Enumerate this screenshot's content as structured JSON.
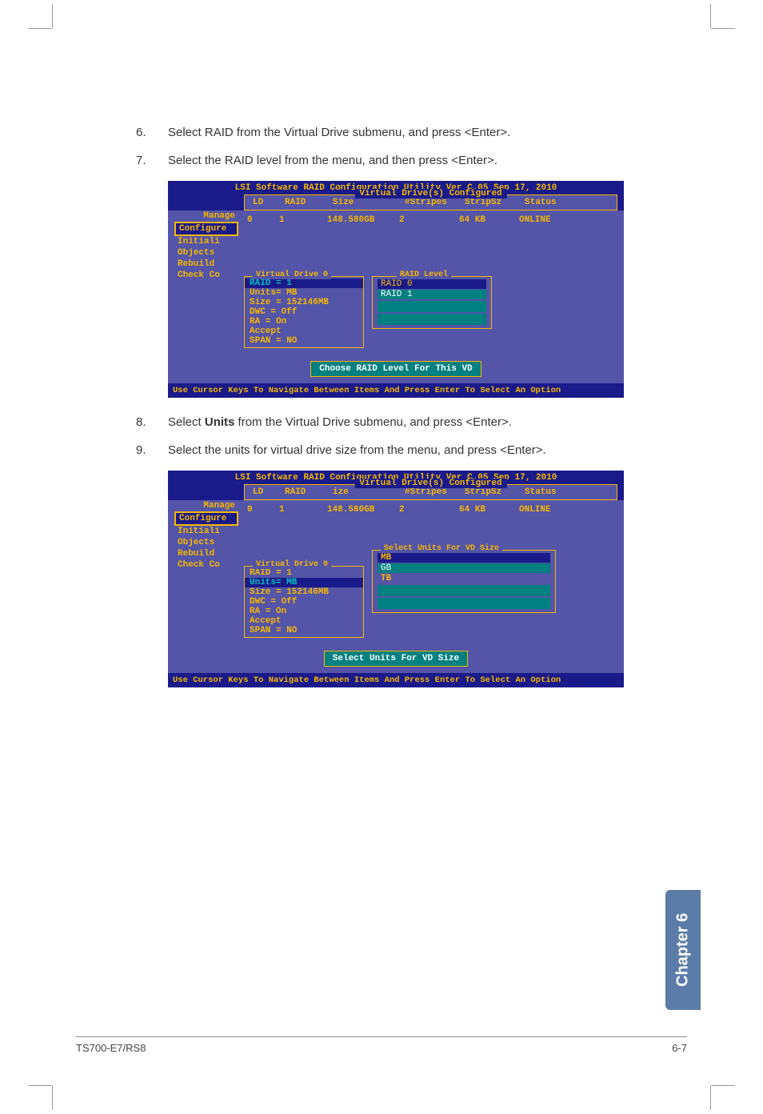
{
  "steps": {
    "s6": {
      "num": "6.",
      "text": "Select RAID from the Virtual Drive submenu, and press <Enter>."
    },
    "s7": {
      "num": "7.",
      "text": "Select the RAID level from the menu, and then press <Enter>."
    },
    "s8_pre": "Select ",
    "s8_bold": "Units",
    "s8_post": " from the Virtual Drive submenu, and press <Enter>.",
    "s8_num": "8.",
    "s9": {
      "num": "9.",
      "text": "Select the units for virtual drive size from the menu, and press <Enter>."
    }
  },
  "terminal": {
    "title": "LSI Software RAID Configuration Utility Ver C.05 Sep 17, 2010",
    "header_label": "Virtual Drive(s) Configured",
    "columns": {
      "ld": "LD",
      "raid": "RAID",
      "size": "Size",
      "size2": "ize",
      "stripes": "#Stripes",
      "stripsz": "StripSz",
      "status": "Status"
    },
    "row": {
      "ld": "0",
      "raid": "1",
      "size": "148.580GB",
      "stripes": "2",
      "stripsz": "64 KB",
      "status": "ONLINE"
    },
    "sidebar": {
      "manage": "Manage",
      "configure": "Configure",
      "initiali": "Initiali",
      "objects": "Objects",
      "rebuild": "Rebuild",
      "check": "Check Co"
    },
    "vd_label": "Virtual Drive 0",
    "vd": {
      "raid": "RAID = 1",
      "units": "Units= MB",
      "sizev": "Size = 152146MB",
      "dwc": "DWC  = Off",
      "ra": "RA   = On",
      "accept": "Accept",
      "span": "SPAN = NO"
    },
    "raid_level_label": "RAID Level",
    "raid_options": {
      "r0": "RAID 0",
      "r1": "RAID 1"
    },
    "units_label": "Select Units For VD Size",
    "units_options": {
      "mb": "MB",
      "gb": "GB",
      "tb": "TB"
    },
    "prompt1": "Choose RAID Level For This VD",
    "prompt2": "Select Units For VD Size",
    "footer": "Use Cursor Keys To Navigate Between Items And Press Enter To Select An Option"
  },
  "colors": {
    "term_bg_dark": "#1a1a8a",
    "term_bg_light": "#5454a8",
    "term_yellow": "#f5b800",
    "term_teal": "#008080",
    "chapter_bg": "#5b7ca8"
  },
  "footer": {
    "left": "TS700-E7/RS8",
    "right": "6-7"
  },
  "chapter": "Chapter 6"
}
